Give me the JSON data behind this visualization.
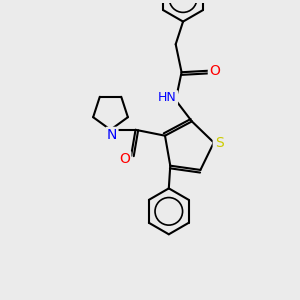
{
  "background_color": "#ebebeb",
  "atom_colors": {
    "S": "#cccc00",
    "N": "#0000ff",
    "O": "#ff0000",
    "C": "#000000",
    "H": "#404040"
  },
  "bond_color": "#000000",
  "bond_width": 1.5
}
